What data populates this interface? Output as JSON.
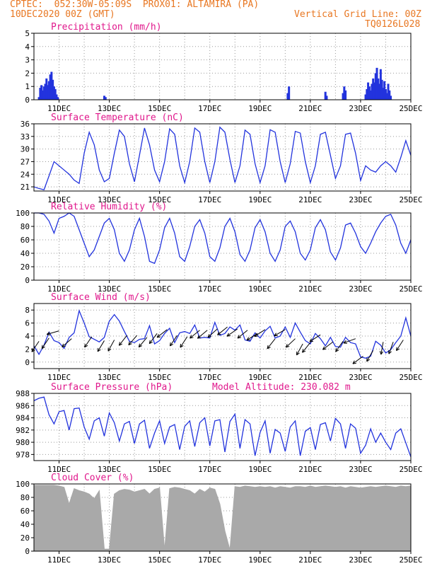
{
  "header": {
    "line1": "CPTEC:  052:30W-05:09S  PROX01: ALTAMIRA (PA)",
    "line2": "10DEC2020 00Z (GMT)",
    "vgrid": "Vertical Grid Line: 00Z",
    "code": "TQ0126L028"
  },
  "colors": {
    "line": "#2233dd",
    "accent": "#e0188c",
    "header": "#e87722",
    "cloud": "#a9a9a9"
  },
  "x_axis": {
    "tick_labels": [
      "11DEC",
      "13DEC",
      "15DEC",
      "17DEC",
      "19DEC",
      "21DEC",
      "23DEC",
      "25DEC"
    ],
    "day_range": [
      10,
      25
    ]
  },
  "chart_data": [
    {
      "type": "bar",
      "title": "Precipitation (mm/h)",
      "ylim": [
        0,
        5
      ],
      "yticks": [
        "0",
        "1",
        "2",
        "3",
        "4",
        "5"
      ],
      "x_unit": "day of Dec 2020",
      "x": [
        10.2,
        10.25,
        10.3,
        10.35,
        10.4,
        10.45,
        10.5,
        10.55,
        10.6,
        10.65,
        10.7,
        10.75,
        10.8,
        10.85,
        10.9,
        10.95,
        12.8,
        12.85,
        20.1,
        20.15,
        21.6,
        21.65,
        22.3,
        22.35,
        22.4,
        23.2,
        23.25,
        23.3,
        23.35,
        23.4,
        23.45,
        23.5,
        23.55,
        23.6,
        23.65,
        23.7,
        23.75,
        23.8,
        23.85,
        23.9,
        23.95,
        24.0,
        24.05,
        24.1,
        24.15,
        24.2
      ],
      "values": [
        0.2,
        0.9,
        1.1,
        0.7,
        1.0,
        1.2,
        1.6,
        1.1,
        1.4,
        1.9,
        2.1,
        1.5,
        1.0,
        0.8,
        0.4,
        0.2,
        0.3,
        0.2,
        0.5,
        1.0,
        0.6,
        0.3,
        0.5,
        1.0,
        0.7,
        0.4,
        0.8,
        1.3,
        1.0,
        0.7,
        1.2,
        1.6,
        1.3,
        2.0,
        2.4,
        1.6,
        1.2,
        2.3,
        1.5,
        0.9,
        1.4,
        0.8,
        0.5,
        1.2,
        0.7,
        0.3
      ]
    },
    {
      "type": "line",
      "title": "Surface Temperature (nC)",
      "ylim": [
        20,
        36
      ],
      "yticks": [
        "21",
        "24",
        "27",
        "30",
        "33",
        "36"
      ],
      "x": [
        10.0,
        10.2,
        10.4,
        10.6,
        10.8,
        11.0,
        11.2,
        11.4,
        11.6,
        11.8,
        12.0,
        12.2,
        12.4,
        12.6,
        12.8,
        13.0,
        13.2,
        13.4,
        13.6,
        13.8,
        14.0,
        14.2,
        14.4,
        14.6,
        14.8,
        15.0,
        15.2,
        15.4,
        15.6,
        15.8,
        16.0,
        16.2,
        16.4,
        16.6,
        16.8,
        17.0,
        17.2,
        17.4,
        17.6,
        17.8,
        18.0,
        18.2,
        18.4,
        18.6,
        18.8,
        19.0,
        19.2,
        19.4,
        19.6,
        19.8,
        20.0,
        20.2,
        20.4,
        20.6,
        20.8,
        21.0,
        21.2,
        21.4,
        21.6,
        21.8,
        22.0,
        22.2,
        22.4,
        22.6,
        22.8,
        23.0,
        23.2,
        23.4,
        23.6,
        23.8,
        24.0,
        24.2,
        24.4,
        24.6,
        24.8,
        25.0
      ],
      "values": [
        21,
        20.6,
        20.3,
        23.6,
        27.0,
        26.0,
        25.0,
        24.0,
        22.6,
        21.8,
        29.0,
        34.0,
        31.0,
        25.0,
        22.2,
        23.0,
        29.0,
        34.5,
        33.0,
        26.5,
        22.2,
        28.5,
        35.0,
        31.0,
        25.0,
        22.2,
        27.0,
        34.8,
        33.5,
        26.0,
        22.0,
        27.0,
        35.0,
        34.0,
        27.0,
        22.0,
        27.0,
        35.2,
        34.0,
        27.5,
        22.0,
        26.0,
        34.5,
        33.5,
        26.5,
        22.0,
        26.0,
        34.6,
        34.0,
        27.0,
        22.0,
        26.5,
        34.2,
        33.8,
        27.0,
        22.0,
        26.0,
        33.5,
        34.0,
        28.5,
        23.0,
        26.0,
        33.5,
        33.8,
        29.0,
        22.5,
        26.0,
        25.0,
        24.5,
        26.0,
        27.0,
        26.0,
        24.5,
        28.0,
        32.0,
        28.5
      ]
    },
    {
      "type": "line",
      "title": "Relative Humidity (%)",
      "ylim": [
        0,
        100
      ],
      "yticks": [
        "0",
        "20",
        "40",
        "60",
        "80",
        "100"
      ],
      "x": [
        10.0,
        10.2,
        10.4,
        10.6,
        10.8,
        11.0,
        11.2,
        11.4,
        11.6,
        11.8,
        12.0,
        12.2,
        12.4,
        12.6,
        12.8,
        13.0,
        13.2,
        13.4,
        13.6,
        13.8,
        14.0,
        14.2,
        14.4,
        14.6,
        14.8,
        15.0,
        15.2,
        15.4,
        15.6,
        15.8,
        16.0,
        16.2,
        16.4,
        16.6,
        16.8,
        17.0,
        17.2,
        17.4,
        17.6,
        17.8,
        18.0,
        18.2,
        18.4,
        18.6,
        18.8,
        19.0,
        19.2,
        19.4,
        19.6,
        19.8,
        20.0,
        20.2,
        20.4,
        20.6,
        20.8,
        21.0,
        21.2,
        21.4,
        21.6,
        21.8,
        22.0,
        22.2,
        22.4,
        22.6,
        22.8,
        23.0,
        23.2,
        23.4,
        23.6,
        23.8,
        24.0,
        24.2,
        24.4,
        24.6,
        24.8,
        25.0
      ],
      "values": [
        100,
        100,
        98,
        88,
        70,
        92,
        95,
        100,
        95,
        75,
        55,
        35,
        45,
        65,
        85,
        92,
        75,
        40,
        28,
        45,
        75,
        92,
        65,
        28,
        25,
        45,
        78,
        92,
        70,
        35,
        28,
        50,
        80,
        90,
        70,
        35,
        28,
        48,
        80,
        92,
        72,
        38,
        28,
        45,
        78,
        90,
        72,
        40,
        28,
        45,
        80,
        88,
        72,
        40,
        30,
        45,
        78,
        90,
        75,
        42,
        30,
        48,
        82,
        85,
        70,
        50,
        40,
        55,
        72,
        85,
        95,
        98,
        82,
        55,
        40,
        60
      ]
    },
    {
      "type": "line",
      "title": "Surface Wind (m/s)",
      "ylim": [
        -1,
        9
      ],
      "yticks": [
        "0",
        "2",
        "4",
        "6",
        "8"
      ],
      "x": [
        10.0,
        10.2,
        10.4,
        10.6,
        10.8,
        11.0,
        11.2,
        11.4,
        11.6,
        11.8,
        12.0,
        12.2,
        12.4,
        12.6,
        12.8,
        13.0,
        13.2,
        13.4,
        13.6,
        13.8,
        14.0,
        14.2,
        14.4,
        14.6,
        14.8,
        15.0,
        15.2,
        15.4,
        15.6,
        15.8,
        16.0,
        16.2,
        16.4,
        16.6,
        16.8,
        17.0,
        17.2,
        17.4,
        17.6,
        17.8,
        18.0,
        18.2,
        18.4,
        18.6,
        18.8,
        19.0,
        19.2,
        19.4,
        19.6,
        19.8,
        20.0,
        20.2,
        20.4,
        20.6,
        20.8,
        21.0,
        21.2,
        21.4,
        21.6,
        21.8,
        22.0,
        22.2,
        22.4,
        22.6,
        22.8,
        23.0,
        23.2,
        23.4,
        23.6,
        23.8,
        24.0,
        24.2,
        24.4,
        24.6,
        24.8,
        25.0
      ],
      "values": [
        2.5,
        1.2,
        2.6,
        4.6,
        3.3,
        3.0,
        2.1,
        3.8,
        4.5,
        7.9,
        6.0,
        3.9,
        3.5,
        3.1,
        3.8,
        6.3,
        7.3,
        6.3,
        4.7,
        3.2,
        3.0,
        3.5,
        3.6,
        5.6,
        2.8,
        3.3,
        4.4,
        5.2,
        3.0,
        4.5,
        4.7,
        4.4,
        5.7,
        3.7,
        3.8,
        3.7,
        6.1,
        4.1,
        4.4,
        5.4,
        4.9,
        5.7,
        3.4,
        3.2,
        4.5,
        3.7,
        4.8,
        5.5,
        3.7,
        4.0,
        5.4,
        3.8,
        6.0,
        4.6,
        3.3,
        2.8,
        4.4,
        3.6,
        2.5,
        3.8,
        2.4,
        2.3,
        3.8,
        3.0,
        2.8,
        0.8,
        0.6,
        0.9,
        3.2,
        2.6,
        1.4,
        1.9,
        3.0,
        4.0,
        6.8,
        4.0
      ],
      "arrows": [
        [
          10.2,
          3.2,
          236
        ],
        [
          10.6,
          3.7,
          236
        ],
        [
          11.0,
          4.8,
          196
        ],
        [
          11.5,
          3.6,
          221
        ],
        [
          12.3,
          3.9,
          236
        ],
        [
          12.8,
          3.3,
          239
        ],
        [
          13.2,
          3.4,
          241
        ],
        [
          13.7,
          4.1,
          232
        ],
        [
          14.1,
          4.1,
          229
        ],
        [
          14.5,
          3.8,
          230
        ],
        [
          14.9,
          4.4,
          233
        ],
        [
          15.3,
          5.0,
          218
        ],
        [
          15.7,
          4.1,
          236
        ],
        [
          16.1,
          3.9,
          237
        ],
        [
          16.6,
          4.9,
          219
        ],
        [
          16.9,
          4.9,
          220
        ],
        [
          17.3,
          5.1,
          222
        ],
        [
          17.7,
          5.4,
          219
        ],
        [
          18.1,
          5.1,
          215
        ],
        [
          18.5,
          4.9,
          219
        ],
        [
          18.9,
          4.4,
          212
        ],
        [
          19.2,
          5.0,
          213
        ],
        [
          19.6,
          3.6,
          232
        ],
        [
          20.0,
          5.0,
          210
        ],
        [
          20.4,
          3.6,
          223
        ],
        [
          20.7,
          2.8,
          241
        ],
        [
          21.0,
          3.0,
          231
        ],
        [
          21.4,
          4.2,
          213
        ],
        [
          21.9,
          3.1,
          217
        ],
        [
          22.3,
          3.2,
          235
        ],
        [
          22.8,
          3.6,
          200
        ],
        [
          23.1,
          0.9,
          216
        ],
        [
          23.5,
          1.8,
          240
        ],
        [
          23.9,
          3.1,
          260
        ],
        [
          24.3,
          3.1,
          250
        ],
        [
          24.7,
          3.4,
          237
        ]
      ]
    },
    {
      "type": "line",
      "title": "Surface Pressure (hPa)",
      "annotation": "Model Altitude: 230.082 m",
      "ylim": [
        977,
        988
      ],
      "yticks": [
        "978",
        "980",
        "982",
        "984",
        "986",
        "988"
      ],
      "x": [
        10.0,
        10.2,
        10.4,
        10.6,
        10.8,
        11.0,
        11.2,
        11.4,
        11.6,
        11.8,
        12.0,
        12.2,
        12.4,
        12.6,
        12.8,
        13.0,
        13.2,
        13.4,
        13.6,
        13.8,
        14.0,
        14.2,
        14.4,
        14.6,
        14.8,
        15.0,
        15.2,
        15.4,
        15.6,
        15.8,
        16.0,
        16.2,
        16.4,
        16.6,
        16.8,
        17.0,
        17.2,
        17.4,
        17.6,
        17.8,
        18.0,
        18.2,
        18.4,
        18.6,
        18.8,
        19.0,
        19.2,
        19.4,
        19.6,
        19.8,
        20.0,
        20.2,
        20.4,
        20.6,
        20.8,
        21.0,
        21.2,
        21.4,
        21.6,
        21.8,
        22.0,
        22.2,
        22.4,
        22.6,
        22.8,
        23.0,
        23.2,
        23.4,
        23.6,
        23.8,
        24.0,
        24.2,
        24.4,
        24.6,
        24.8,
        25.0
      ],
      "values": [
        986.8,
        987.2,
        987.4,
        984.5,
        983.0,
        985.0,
        985.2,
        982.0,
        985.5,
        985.6,
        982.5,
        980.5,
        983.5,
        984.0,
        981.0,
        984.8,
        983.2,
        980.2,
        983.0,
        983.4,
        979.8,
        983.0,
        983.6,
        979.0,
        981.5,
        983.5,
        979.8,
        982.5,
        982.9,
        978.8,
        982.6,
        983.5,
        979.3,
        983.2,
        984.0,
        979.4,
        983.5,
        983.7,
        978.4,
        983.4,
        984.6,
        979.0,
        983.7,
        983.0,
        977.8,
        981.6,
        983.5,
        978.2,
        982.1,
        981.5,
        978.5,
        982.5,
        983.5,
        977.8,
        981.8,
        982.4,
        978.8,
        982.9,
        983.2,
        980.2,
        983.9,
        983.0,
        979.0,
        983.0,
        982.3,
        978.2,
        979.5,
        982.2,
        980.0,
        981.5,
        980.0,
        978.8,
        981.5,
        982.2,
        979.9,
        977.6
      ]
    },
    {
      "type": "area",
      "title": "Cloud Cover (%)",
      "ylim": [
        0,
        100
      ],
      "yticks": [
        "0",
        "20",
        "40",
        "60",
        "80",
        "100"
      ],
      "x": [
        10.0,
        10.2,
        10.4,
        10.6,
        10.8,
        11.0,
        11.2,
        11.4,
        11.6,
        11.8,
        12.0,
        12.2,
        12.4,
        12.6,
        12.8,
        13.0,
        13.2,
        13.4,
        13.6,
        13.8,
        14.0,
        14.2,
        14.4,
        14.6,
        14.8,
        15.0,
        15.2,
        15.4,
        15.6,
        15.8,
        16.0,
        16.2,
        16.4,
        16.6,
        16.8,
        17.0,
        17.2,
        17.4,
        17.6,
        17.8,
        18.0,
        18.2,
        18.4,
        18.6,
        18.8,
        19.0,
        19.2,
        19.4,
        19.6,
        19.8,
        20.0,
        20.2,
        20.4,
        20.6,
        20.8,
        21.0,
        21.2,
        21.4,
        21.6,
        21.8,
        22.0,
        22.2,
        22.4,
        22.6,
        22.8,
        23.0,
        23.2,
        23.4,
        23.6,
        23.8,
        24.0,
        24.2,
        24.4,
        24.6,
        24.8,
        25.0
      ],
      "values": [
        98,
        98,
        98,
        98,
        98,
        97,
        95,
        70,
        93,
        90,
        88,
        85,
        78,
        90,
        3,
        3,
        85,
        90,
        92,
        91,
        88,
        90,
        92,
        85,
        92,
        94,
        2,
        93,
        95,
        94,
        92,
        90,
        85,
        92,
        88,
        94,
        92,
        70,
        30,
        2,
        96,
        95,
        97,
        96,
        95,
        96,
        95,
        96,
        94,
        96,
        95,
        94,
        96,
        96,
        95,
        97,
        95,
        96,
        97,
        96,
        95,
        96,
        94,
        96,
        95,
        94,
        95,
        96,
        95,
        96,
        97,
        96,
        95,
        97,
        96,
        97
      ]
    }
  ]
}
